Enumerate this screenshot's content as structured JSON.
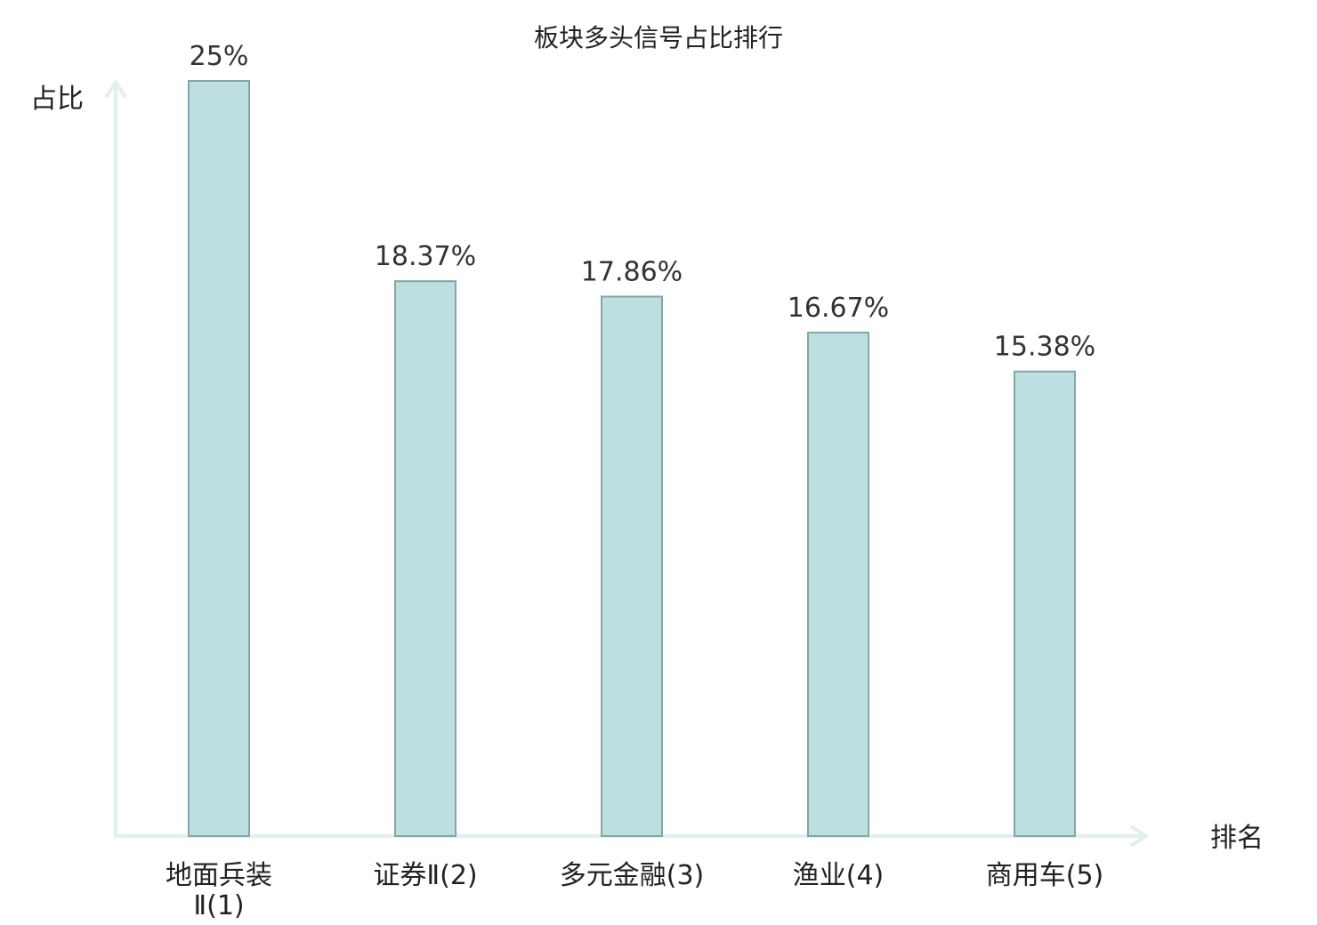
{
  "chart_data": {
    "type": "bar",
    "title": "板块多头信号占比排行",
    "ylabel": "占比",
    "xlabel": "排名",
    "ylim": [
      0,
      25
    ],
    "grid": false,
    "legend": "none",
    "categories": [
      {
        "lines": [
          "地面兵装",
          "Ⅱ(1)"
        ],
        "highlight": true
      },
      {
        "lines": [
          "证券Ⅱ(2)"
        ],
        "highlight": false
      },
      {
        "lines": [
          "多元金融(3)"
        ],
        "highlight": false
      },
      {
        "lines": [
          "渔业(4)"
        ],
        "highlight": false
      },
      {
        "lines": [
          "商用车(5)"
        ],
        "highlight": false
      }
    ],
    "values": [
      25,
      18.37,
      17.86,
      16.67,
      15.38
    ],
    "value_labels": [
      "25%",
      "18.37%",
      "17.86%",
      "16.67%",
      "15.38%"
    ]
  },
  "colors": {
    "bar_fill": "#bce0e1",
    "bar_stroke": "#86a5a6",
    "axis": "#dff0ee",
    "highlight_label": "#e0000f",
    "normal_label": "#222222"
  }
}
